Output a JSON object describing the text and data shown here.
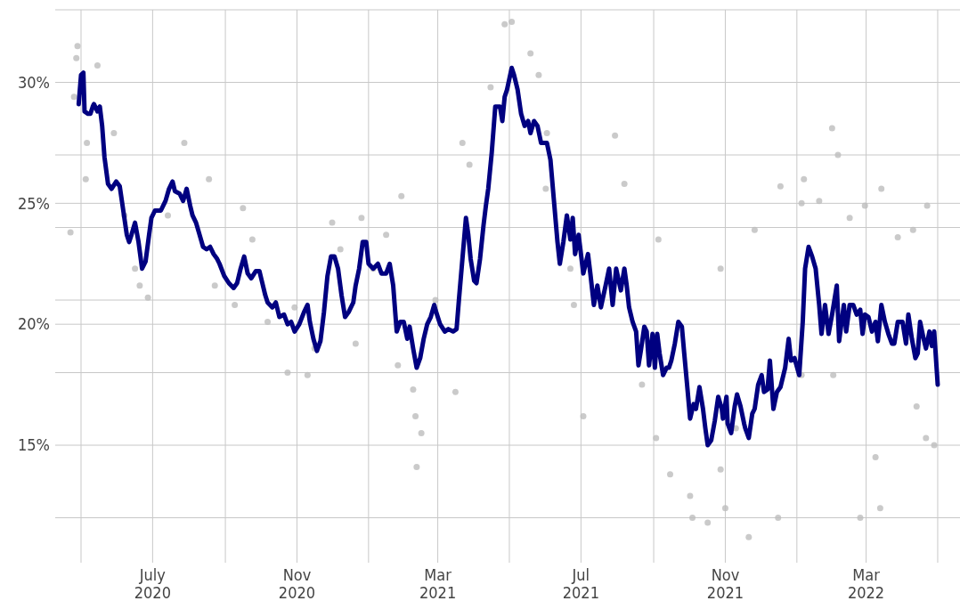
{
  "chart_data": {
    "type": "line",
    "xlim": [
      "2020-04-09",
      "2022-05-20"
    ],
    "ylim": [
      10.4,
      33
    ],
    "xticks": [
      {
        "value": "2020-05-01",
        "label": null
      },
      {
        "value": "2020-07-01",
        "label": "July 2020"
      },
      {
        "value": "2020-09-01",
        "label": null
      },
      {
        "value": "2020-11-01",
        "label": "Nov 2020"
      },
      {
        "value": "2021-01-01",
        "label": null
      },
      {
        "value": "2021-03-01",
        "label": "Mar 2021"
      },
      {
        "value": "2021-05-01",
        "label": null
      },
      {
        "value": "2021-07-01",
        "label": "Jul 2021"
      },
      {
        "value": "2021-09-01",
        "label": null
      },
      {
        "value": "2021-11-01",
        "label": "Nov 2021"
      },
      {
        "value": "2022-01-01",
        "label": null
      },
      {
        "value": "2022-03-01",
        "label": "Mar 2022"
      },
      {
        "value": "2022-05-01",
        "label": null
      }
    ],
    "yticks": [
      {
        "value": 12,
        "label": null
      },
      {
        "value": 15,
        "label": "15%"
      },
      {
        "value": 18,
        "label": null
      },
      {
        "value": 20,
        "label": "20%"
      },
      {
        "value": 21,
        "label": null
      },
      {
        "value": 24,
        "label": null
      },
      {
        "value": 25,
        "label": "25%"
      },
      {
        "value": 27,
        "label": null
      },
      {
        "value": 30,
        "label": "30%"
      },
      {
        "value": 33,
        "label": null
      }
    ],
    "grid": true,
    "series": [
      {
        "type": "scatter",
        "color": "#bdbdbd",
        "marker": "circle",
        "x": [
          "2020-04-22",
          "2020-04-25",
          "2020-04-27",
          "2020-04-28",
          "2020-05-05",
          "2020-05-06",
          "2020-05-15",
          "2020-05-29",
          "2020-06-07",
          "2020-06-16",
          "2020-06-20",
          "2020-06-27",
          "2020-07-14",
          "2020-07-28",
          "2020-08-18",
          "2020-08-23",
          "2020-09-09",
          "2020-09-16",
          "2020-09-24",
          "2020-10-07",
          "2020-10-24",
          "2020-10-30",
          "2020-11-10",
          "2020-11-16",
          "2020-12-01",
          "2020-12-08",
          "2020-12-21",
          "2020-12-26",
          "2021-01-05",
          "2021-01-16",
          "2021-01-26",
          "2021-01-29",
          "2021-02-08",
          "2021-02-10",
          "2021-02-11",
          "2021-02-15",
          "2021-02-27",
          "2021-03-16",
          "2021-03-22",
          "2021-03-28",
          "2021-04-15",
          "2021-04-27",
          "2021-05-03",
          "2021-05-19",
          "2021-05-26",
          "2021-06-01",
          "2021-06-02",
          "2021-06-22",
          "2021-06-25",
          "2021-07-03",
          "2021-07-30",
          "2021-08-07",
          "2021-08-22",
          "2021-09-03",
          "2021-09-05",
          "2021-09-15",
          "2021-10-02",
          "2021-10-04",
          "2021-10-17",
          "2021-10-28",
          "2021-10-28",
          "2021-11-01",
          "2021-11-10",
          "2021-11-21",
          "2021-11-26",
          "2021-12-16",
          "2021-12-18",
          "2022-01-05",
          "2022-01-05",
          "2022-01-07",
          "2022-01-20",
          "2022-01-31",
          "2022-02-01",
          "2022-02-05",
          "2022-02-15",
          "2022-02-24",
          "2022-02-28",
          "2022-03-09",
          "2022-03-13",
          "2022-03-14",
          "2022-03-28",
          "2022-04-10",
          "2022-04-13",
          "2022-04-21",
          "2022-04-22",
          "2022-04-28"
        ],
        "values": [
          23.8,
          29.4,
          31.0,
          31.5,
          26.0,
          27.5,
          30.7,
          27.9,
          24.5,
          22.3,
          21.6,
          21.1,
          24.5,
          27.5,
          26.0,
          21.6,
          20.8,
          24.8,
          23.5,
          20.1,
          18.0,
          20.7,
          17.9,
          19.0,
          24.2,
          23.1,
          19.2,
          24.4,
          22.3,
          23.7,
          18.3,
          25.3,
          17.3,
          16.2,
          14.1,
          15.5,
          21.0,
          17.2,
          27.5,
          26.6,
          29.8,
          32.4,
          32.5,
          31.2,
          30.3,
          25.6,
          27.9,
          22.3,
          20.8,
          16.2,
          27.8,
          25.8,
          17.5,
          15.3,
          23.5,
          13.8,
          12.9,
          12.0,
          11.8,
          22.3,
          14.0,
          12.4,
          15.7,
          11.2,
          23.9,
          12.0,
          25.7,
          25.0,
          17.9,
          26.0,
          25.1,
          28.1,
          17.9,
          27.0,
          24.4,
          12.0,
          24.9,
          14.5,
          12.4,
          25.6,
          23.6,
          23.9,
          16.6,
          15.3,
          24.9,
          15.0
        ]
      },
      {
        "color": "#000080",
        "line_style": "solid",
        "x": [
          "2020-04-29",
          "2020-05-01",
          "2020-05-03",
          "2020-05-04",
          "2020-05-07",
          "2020-05-09",
          "2020-05-11",
          "2020-05-12",
          "2020-05-15",
          "2020-05-17",
          "2020-05-19",
          "2020-05-21",
          "2020-05-24",
          "2020-05-27",
          "2020-05-31",
          "2020-06-03",
          "2020-06-06",
          "2020-06-09",
          "2020-06-11",
          "2020-06-13",
          "2020-06-16",
          "2020-06-19",
          "2020-06-22",
          "2020-06-25",
          "2020-06-28",
          "2020-06-30",
          "2020-07-03",
          "2020-07-08",
          "2020-07-12",
          "2020-07-15",
          "2020-07-18",
          "2020-07-20",
          "2020-07-24",
          "2020-07-27",
          "2020-07-30",
          "2020-08-02",
          "2020-08-04",
          "2020-08-07",
          "2020-08-10",
          "2020-08-13",
          "2020-08-16",
          "2020-08-19",
          "2020-08-22",
          "2020-08-25",
          "2020-08-27",
          "2020-08-31",
          "2020-09-04",
          "2020-09-08",
          "2020-09-11",
          "2020-09-14",
          "2020-09-17",
          "2020-09-20",
          "2020-09-23",
          "2020-09-27",
          "2020-09-30",
          "2020-10-02",
          "2020-10-05",
          "2020-10-07",
          "2020-10-11",
          "2020-10-14",
          "2020-10-17",
          "2020-10-21",
          "2020-10-24",
          "2020-10-27",
          "2020-10-30",
          "2020-11-03",
          "2020-11-07",
          "2020-11-10",
          "2020-11-12",
          "2020-11-15",
          "2020-11-18",
          "2020-11-21",
          "2020-11-24",
          "2020-11-27",
          "2020-11-30",
          "2020-12-03",
          "2020-12-06",
          "2020-12-09",
          "2020-12-12",
          "2020-12-15",
          "2020-12-19",
          "2020-12-21",
          "2020-12-24",
          "2020-12-27",
          "2020-12-30",
          "2021-01-01",
          "2021-01-05",
          "2021-01-09",
          "2021-01-12",
          "2021-01-16",
          "2021-01-19",
          "2021-01-22",
          "2021-01-25",
          "2021-01-28",
          "2021-01-31",
          "2021-02-03",
          "2021-02-05",
          "2021-02-08",
          "2021-02-11",
          "2021-02-14",
          "2021-02-17",
          "2021-02-20",
          "2021-02-23",
          "2021-02-26",
          "2021-02-27",
          "2021-03-03",
          "2021-03-07",
          "2021-03-10",
          "2021-03-14",
          "2021-03-17",
          "2021-03-19",
          "2021-03-22",
          "2021-03-25",
          "2021-03-27",
          "2021-03-29",
          "2021-04-01",
          "2021-04-03",
          "2021-04-06",
          "2021-04-09",
          "2021-04-11",
          "2021-04-13",
          "2021-04-16",
          "2021-04-19",
          "2021-04-21",
          "2021-04-23",
          "2021-04-25",
          "2021-04-27",
          "2021-04-29",
          "2021-05-03",
          "2021-05-05",
          "2021-05-08",
          "2021-05-11",
          "2021-05-14",
          "2021-05-17",
          "2021-05-19",
          "2021-05-22",
          "2021-05-25",
          "2021-05-28",
          "2021-06-02",
          "2021-06-05",
          "2021-06-08",
          "2021-06-11",
          "2021-06-13",
          "2021-06-16",
          "2021-06-19",
          "2021-06-22",
          "2021-06-24",
          "2021-06-26",
          "2021-06-29",
          "2021-07-03",
          "2021-07-04",
          "2021-07-07",
          "2021-07-09",
          "2021-07-12",
          "2021-07-15",
          "2021-07-18",
          "2021-07-22",
          "2021-07-25",
          "2021-07-28",
          "2021-07-31",
          "2021-08-04",
          "2021-08-07",
          "2021-08-09",
          "2021-08-11",
          "2021-08-14",
          "2021-08-17",
          "2021-08-19",
          "2021-08-21",
          "2021-08-24",
          "2021-08-26",
          "2021-08-28",
          "2021-08-31",
          "2021-09-02",
          "2021-09-04",
          "2021-09-06",
          "2021-09-09",
          "2021-09-12",
          "2021-09-14",
          "2021-09-16",
          "2021-09-19",
          "2021-09-22",
          "2021-09-25",
          "2021-09-27",
          "2021-09-30",
          "2021-10-02",
          "2021-10-05",
          "2021-10-07",
          "2021-10-10",
          "2021-10-13",
          "2021-10-15",
          "2021-10-17",
          "2021-10-20",
          "2021-10-23",
          "2021-10-26",
          "2021-10-29",
          "2021-10-30",
          "2021-11-02",
          "2021-11-03",
          "2021-11-06",
          "2021-11-09",
          "2021-11-11",
          "2021-11-14",
          "2021-11-17",
          "2021-11-18",
          "2021-11-21",
          "2021-11-24",
          "2021-11-26",
          "2021-11-29",
          "2021-12-02",
          "2021-12-04",
          "2021-12-07",
          "2021-12-09",
          "2021-12-12",
          "2021-12-15",
          "2021-12-18",
          "2021-12-22",
          "2021-12-25",
          "2021-12-27",
          "2021-12-30",
          "2022-01-03",
          "2022-01-06",
          "2022-01-08",
          "2022-01-11",
          "2022-01-14",
          "2022-01-17",
          "2022-01-20",
          "2022-01-22",
          "2022-01-25",
          "2022-01-28",
          "2022-01-31",
          "2022-02-04",
          "2022-02-06",
          "2022-02-10",
          "2022-02-12",
          "2022-02-15",
          "2022-02-18",
          "2022-02-21",
          "2022-02-24",
          "2022-02-26",
          "2022-02-28",
          "2022-03-03",
          "2022-03-06",
          "2022-03-09",
          "2022-03-11",
          "2022-03-14",
          "2022-03-17",
          "2022-03-20",
          "2022-03-23",
          "2022-03-25",
          "2022-03-28",
          "2022-04-01",
          "2022-04-04",
          "2022-04-06",
          "2022-04-09",
          "2022-04-12",
          "2022-04-14",
          "2022-04-16",
          "2022-04-19",
          "2022-04-21",
          "2022-04-24",
          "2022-04-26",
          "2022-04-28",
          "2022-05-01"
        ],
        "values": [
          29.1,
          30.3,
          30.4,
          28.8,
          28.7,
          28.7,
          29.0,
          29.1,
          28.8,
          29.0,
          28.2,
          26.9,
          25.8,
          25.6,
          25.9,
          25.7,
          24.7,
          23.7,
          23.4,
          23.7,
          24.2,
          23.4,
          22.3,
          22.6,
          23.7,
          24.4,
          24.7,
          24.7,
          25.1,
          25.6,
          25.9,
          25.5,
          25.4,
          25.1,
          25.6,
          24.9,
          24.5,
          24.2,
          23.7,
          23.2,
          23.1,
          23.2,
          22.9,
          22.7,
          22.5,
          22.0,
          21.7,
          21.5,
          21.7,
          22.3,
          22.8,
          22.1,
          21.9,
          22.2,
          22.2,
          21.8,
          21.2,
          20.9,
          20.7,
          20.9,
          20.3,
          20.4,
          20.0,
          20.1,
          19.7,
          20.0,
          20.5,
          20.8,
          20.1,
          19.4,
          18.9,
          19.3,
          20.5,
          22.0,
          22.8,
          22.8,
          22.3,
          21.2,
          20.3,
          20.5,
          20.9,
          21.6,
          22.3,
          23.4,
          23.4,
          22.5,
          22.3,
          22.5,
          22.1,
          22.1,
          22.5,
          21.6,
          19.7,
          20.1,
          20.1,
          19.4,
          19.9,
          19.0,
          18.2,
          18.6,
          19.4,
          20.0,
          20.3,
          20.8,
          20.6,
          20.0,
          19.7,
          19.8,
          19.7,
          19.8,
          21.0,
          22.7,
          24.4,
          23.7,
          22.7,
          21.8,
          21.7,
          22.7,
          24.1,
          24.9,
          25.6,
          27.1,
          29.0,
          29.0,
          29.0,
          28.4,
          29.4,
          29.7,
          30.6,
          30.3,
          29.7,
          28.7,
          28.2,
          28.4,
          27.9,
          28.4,
          28.2,
          27.5,
          27.5,
          26.8,
          25.1,
          23.4,
          22.5,
          23.4,
          24.5,
          23.5,
          24.4,
          22.9,
          23.7,
          22.1,
          22.3,
          22.9,
          22.1,
          20.8,
          21.6,
          20.7,
          21.6,
          22.3,
          20.8,
          22.3,
          21.4,
          22.3,
          21.6,
          20.7,
          20.1,
          19.7,
          18.3,
          18.9,
          19.9,
          19.7,
          18.3,
          19.6,
          18.2,
          19.6,
          18.8,
          17.9,
          18.2,
          18.2,
          18.5,
          19.2,
          20.1,
          19.9,
          18.8,
          17.2,
          16.1,
          16.7,
          16.5,
          17.4,
          16.5,
          15.7,
          15.0,
          15.2,
          16.0,
          17.0,
          16.5,
          16.1,
          17.0,
          15.9,
          15.5,
          16.6,
          17.1,
          16.6,
          15.9,
          15.7,
          15.3,
          16.3,
          16.5,
          17.5,
          17.9,
          17.2,
          17.3,
          18.5,
          16.5,
          17.2,
          17.4,
          18.2,
          19.4,
          18.5,
          18.6,
          17.9,
          20.1,
          22.3,
          23.2,
          22.8,
          22.3,
          20.8,
          19.6,
          20.8,
          19.6,
          20.4,
          21.6,
          19.3,
          20.8,
          19.7,
          20.8,
          20.8,
          20.4,
          20.6,
          19.6,
          20.4,
          20.3,
          19.7,
          20.1,
          19.3,
          20.8,
          20.1,
          19.6,
          19.2,
          19.2,
          20.1,
          20.1,
          19.2,
          20.4,
          19.4,
          18.6,
          18.8,
          20.1,
          19.4,
          19.0,
          19.7,
          19.1,
          19.7,
          17.5
        ]
      }
    ]
  }
}
